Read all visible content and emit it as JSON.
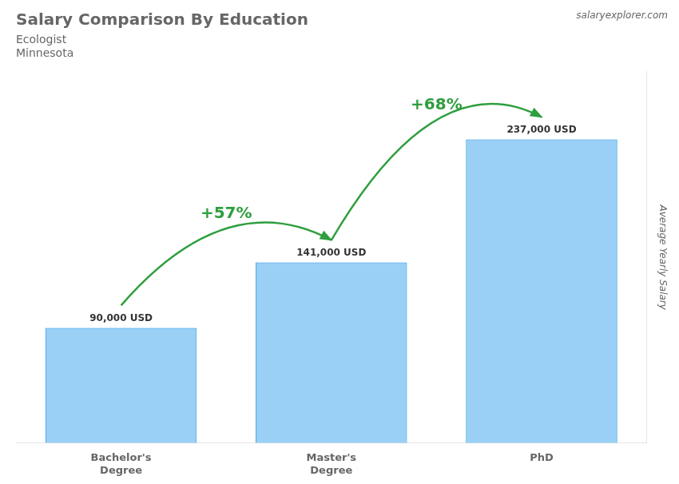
{
  "chart_data": {
    "type": "bar",
    "title": "Salary Comparison By Education",
    "subtitle": [
      "Ecologist",
      "Minnesota"
    ],
    "ylabel": "Average Yearly Salary",
    "categories": [
      "Bachelor's\nDegree",
      "Master's\nDegree",
      "PhD"
    ],
    "values": [
      90000,
      141000,
      237000
    ],
    "value_labels": [
      "90,000 USD",
      "141,000 USD",
      "237,000 USD"
    ],
    "data_labels": true,
    "annotations": [
      "+57%",
      "+68%",
      "salaryexplorer.com"
    ],
    "ylim": [
      0,
      290000
    ],
    "grid": false,
    "tick_labels": "x"
  }
}
